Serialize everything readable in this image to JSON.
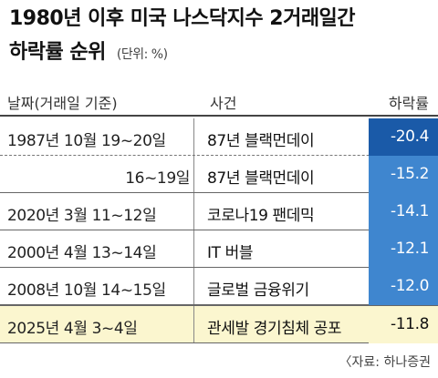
{
  "title_line1": "1980년 이후 미국 나스닥지수 2거래일간",
  "title_line2": "하락률 순위",
  "unit": "(단위: %)",
  "headers": {
    "date": "날짜(거래일 기준)",
    "event": "사건",
    "rate": "하락률"
  },
  "rows": [
    {
      "date": "1987년 10월 19~20일",
      "event": "87년 블랙먼데이",
      "rate": "-20.4"
    },
    {
      "date": "16~19일",
      "event": "87년 블랙먼데이",
      "rate": "-15.2"
    },
    {
      "date": "2020년 3월 11~12일",
      "event": "코로나19 팬데믹",
      "rate": "-14.1"
    },
    {
      "date": "2000년 4월 13~14일",
      "event": "IT 버블",
      "rate": "-12.1"
    },
    {
      "date": "2008년 10월 14~15일",
      "event": "글로벌 금융위기",
      "rate": "-12.0"
    },
    {
      "date": "2025년 4월 3~4일",
      "event": "관세발 경기침체 공포",
      "rate": "-11.8"
    }
  ],
  "source": "〈자료: 하나증권",
  "colors": {
    "rate_dark": "#1a5aa8",
    "rate_light": "#3f86cf",
    "highlight_bg": "#fbf6cf"
  },
  "chart_data": {
    "type": "table",
    "title": "1980년 이후 미국 나스닥지수 2거래일간 하락률 순위",
    "columns": [
      "날짜(거래일 기준)",
      "사건",
      "하락률"
    ],
    "categories": [
      "1987년 10월 19~20일",
      "16~19일",
      "2020년 3월 11~12일",
      "2000년 4월 13~14일",
      "2008년 10월 14~15일",
      "2025년 4월 3~4일"
    ],
    "events": [
      "87년 블랙먼데이",
      "87년 블랙먼데이",
      "코로나19 팬데믹",
      "IT 버블",
      "글로벌 금융위기",
      "관세발 경기침체 공포"
    ],
    "values": [
      -20.4,
      -15.2,
      -14.1,
      -12.1,
      -12.0,
      -11.8
    ]
  }
}
